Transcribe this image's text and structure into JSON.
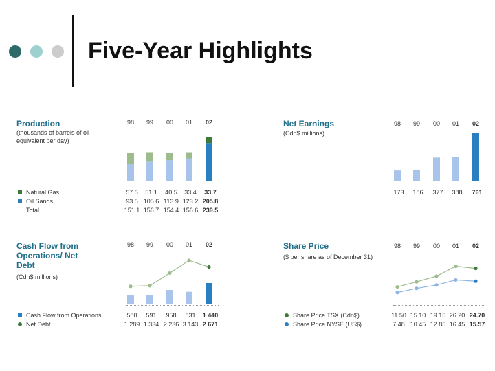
{
  "title": "Five-Year Highlights",
  "colors": {
    "teal_dark": "#2e6a6a",
    "teal_light": "#9fd0d0",
    "grey_light": "#cccccc",
    "title_blue": "#1f6e8a",
    "gas_green": "#9dbb8c",
    "gas_dark": "#3d7a3a",
    "oil_blue": "#a9c4ea",
    "oil_dark": "#2a7fc0",
    "tsx_green": "#9dbb8c",
    "nyse_blue": "#8fb4e3"
  },
  "chart_data": [
    {
      "type": "bar",
      "title": "Production",
      "subtitle": "(thousands of barrels of oil equivalent per day)",
      "categories": [
        "98",
        "99",
        "00",
        "01",
        "02"
      ],
      "stacked": true,
      "series": [
        {
          "name": "Natural Gas",
          "values": [
            57.5,
            51.1,
            40.5,
            33.4,
            33.7
          ],
          "labels": [
            "57.5",
            "51.1",
            "40.5",
            "33.4",
            "33.7"
          ]
        },
        {
          "name": "Oil Sands",
          "values": [
            93.5,
            105.6,
            113.9,
            123.2,
            205.8
          ],
          "labels": [
            "93.5",
            "105.6",
            "113.9",
            "123.2",
            "205.8"
          ]
        },
        {
          "name": "Total",
          "values": [
            151.1,
            156.7,
            154.4,
            156.6,
            239.5
          ],
          "labels": [
            "151.1",
            "156.7",
            "154.4",
            "156.6",
            "239.5"
          ]
        }
      ]
    },
    {
      "type": "bar",
      "title": "Net Earnings",
      "subtitle": "(Cdn$ millions)",
      "categories": [
        "98",
        "99",
        "00",
        "01",
        "02"
      ],
      "series": [
        {
          "name": "",
          "values": [
            173,
            186,
            377,
            388,
            761
          ],
          "labels": [
            "173",
            "186",
            "377",
            "388",
            "761"
          ]
        }
      ]
    },
    {
      "type": "bar",
      "title": "Cash Flow from Operations/ Net Debt",
      "subtitle": "(Cdn$ millions)",
      "categories": [
        "98",
        "99",
        "00",
        "01",
        "02"
      ],
      "series": [
        {
          "name": "Cash Flow from Operations",
          "kind": "bar",
          "values": [
            580,
            591,
            958,
            831,
            1440
          ],
          "labels": [
            "580",
            "591",
            "958",
            "831",
            "1 440"
          ]
        },
        {
          "name": "Net Debt",
          "kind": "line",
          "values": [
            1289,
            1334,
            2236,
            3143,
            2671
          ],
          "labels": [
            "1 289",
            "1 334",
            "2 236",
            "3 143",
            "2 671"
          ]
        }
      ]
    },
    {
      "type": "line",
      "title": "Share Price",
      "subtitle": "($ per share as of December 31)",
      "categories": [
        "98",
        "99",
        "00",
        "01",
        "02"
      ],
      "series": [
        {
          "name": "Share Price TSX (Cdn$)",
          "values": [
            11.5,
            15.1,
            19.15,
            26.2,
            24.7
          ],
          "labels": [
            "11.50",
            "15.10",
            "19.15",
            "26.20",
            "24.70"
          ]
        },
        {
          "name": "Share Price NYSE (US$)",
          "values": [
            7.48,
            10.45,
            12.85,
            16.45,
            15.57
          ],
          "labels": [
            "7.48",
            "10.45",
            "12.85",
            "16.45",
            "15.57"
          ]
        }
      ]
    }
  ]
}
